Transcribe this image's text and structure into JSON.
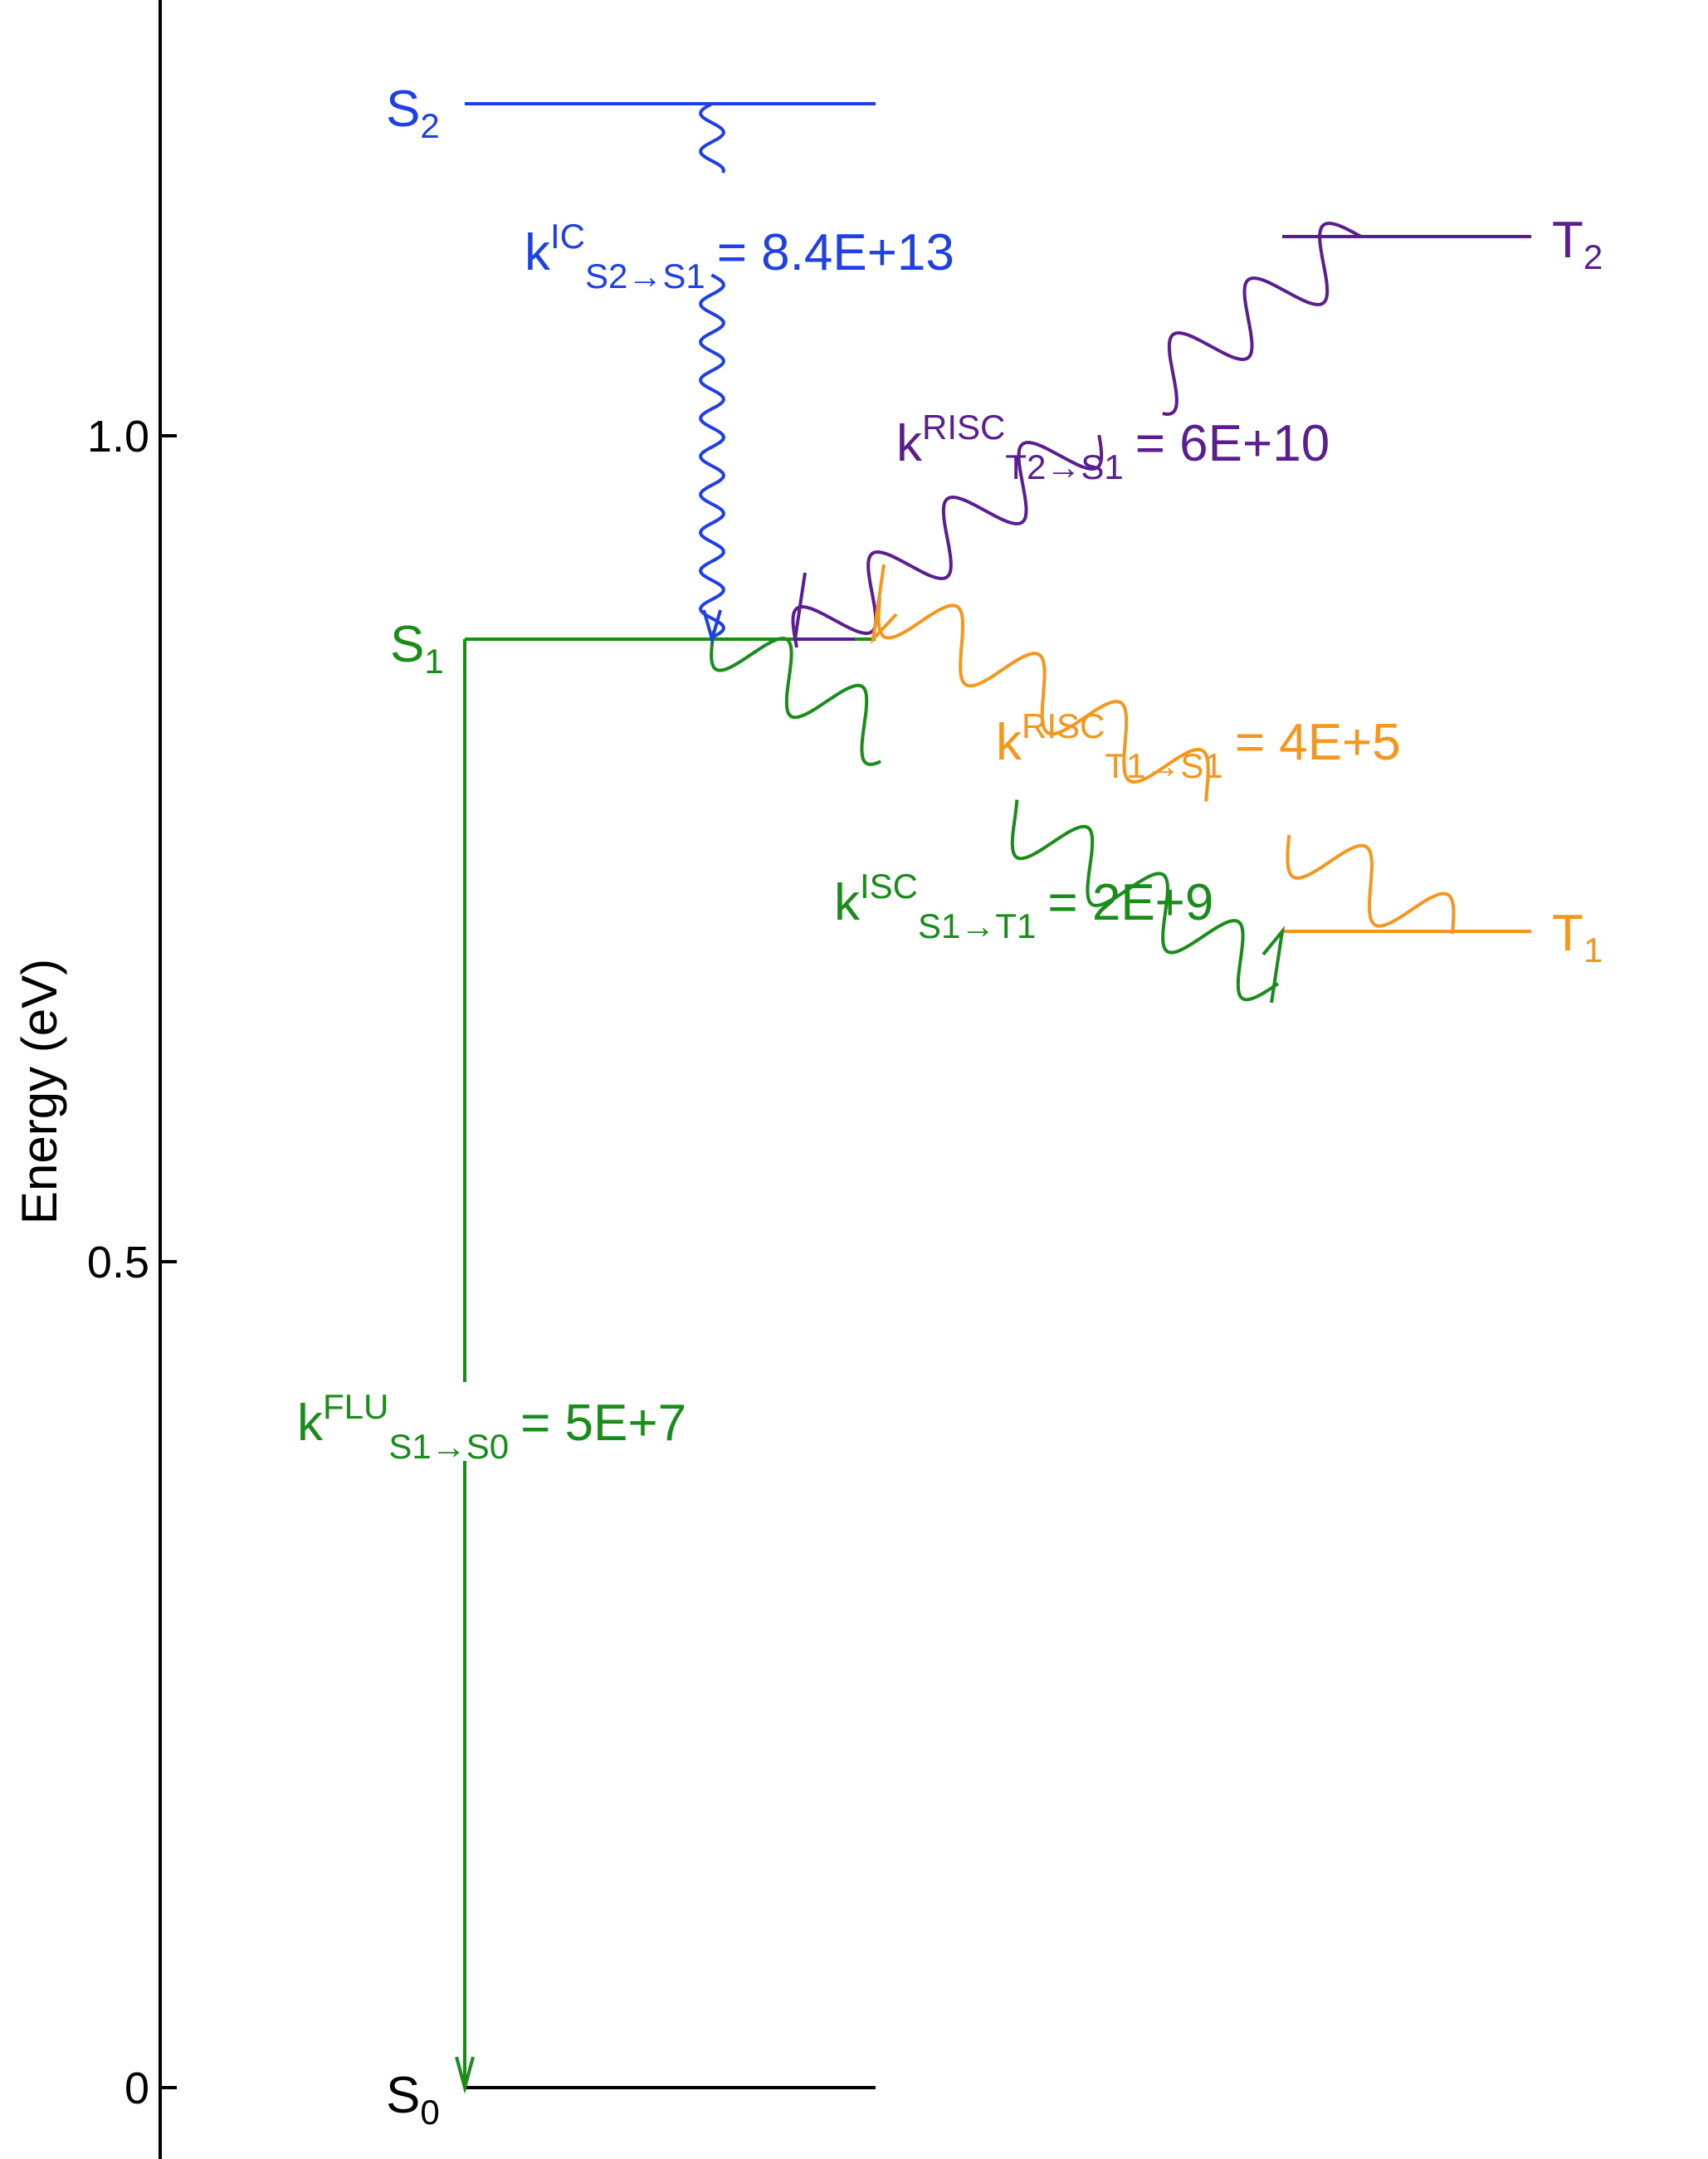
{
  "axis": {
    "ylabel": "Energy (eV)",
    "ticks": [
      "0",
      "0.5",
      "1.0"
    ],
    "tick_values": [
      0,
      0.5,
      1.0
    ]
  },
  "levels": [
    {
      "id": "S0",
      "letter": "S",
      "sub": "0",
      "energy": 0.0,
      "color": "#000000"
    },
    {
      "id": "S1",
      "letter": "S",
      "sub": "1",
      "energy": 0.875,
      "color": "#1a8c1a"
    },
    {
      "id": "S2",
      "letter": "S",
      "sub": "2",
      "energy": 1.2,
      "color": "#1f40e6"
    },
    {
      "id": "T1",
      "letter": "T",
      "sub": "1",
      "energy": 0.7,
      "color": "#f5961e"
    },
    {
      "id": "T2",
      "letter": "T",
      "sub": "2",
      "energy": 1.12,
      "color": "#5a1e91"
    }
  ],
  "transitions": [
    {
      "id": "ic",
      "k": "k",
      "sup": "IC",
      "sub": "S2→S1",
      "value": "= 8.4E+13",
      "color": "#1f40e6"
    },
    {
      "id": "risc-t2",
      "k": "k",
      "sup": "RISC",
      "sub": "T2→S1",
      "value": "= 6E+10",
      "color": "#5a1e91"
    },
    {
      "id": "risc-t1",
      "k": "k",
      "sup": "RISC",
      "sub": "T1→S1",
      "value": "= 4E+5",
      "color": "#f5961e"
    },
    {
      "id": "isc",
      "k": "k",
      "sup": "ISC",
      "sub": "S1→T1",
      "value": "= 2E+9",
      "color": "#1a8c1a"
    },
    {
      "id": "flu",
      "k": "k",
      "sup": "FLU",
      "sub": "S1→S0",
      "value": "= 5E+7",
      "color": "#1a8c1a"
    }
  ]
}
